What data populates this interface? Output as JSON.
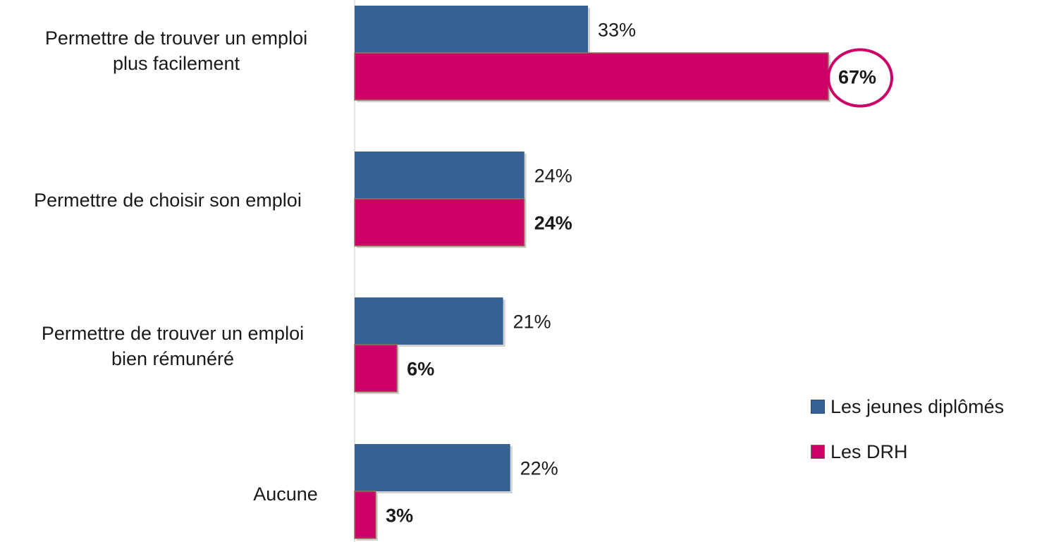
{
  "chart_data": {
    "type": "bar",
    "orientation": "horizontal",
    "categories": [
      "Permettre de trouver un emploi\nplus facilement",
      "Permettre de choisir son emploi",
      "Permettre de trouver un emploi\nbien rémunéré",
      "Aucune"
    ],
    "series": [
      {
        "name": "Les jeunes diplômés",
        "color": "#376092",
        "values": [
          33,
          24,
          21,
          22
        ],
        "labels": [
          "33%",
          "24%",
          "21%",
          "22%"
        ]
      },
      {
        "name": "Les DRH",
        "color": "#CC0066",
        "values": [
          67,
          24,
          6,
          3
        ],
        "labels": [
          "67%",
          "24%",
          "6%",
          "3%"
        ],
        "bold_labels": true
      }
    ],
    "highlight": {
      "series": 1,
      "category": 0,
      "shape": "ellipse",
      "color": "#CC0066"
    },
    "legend_position": "right",
    "grid": false
  }
}
